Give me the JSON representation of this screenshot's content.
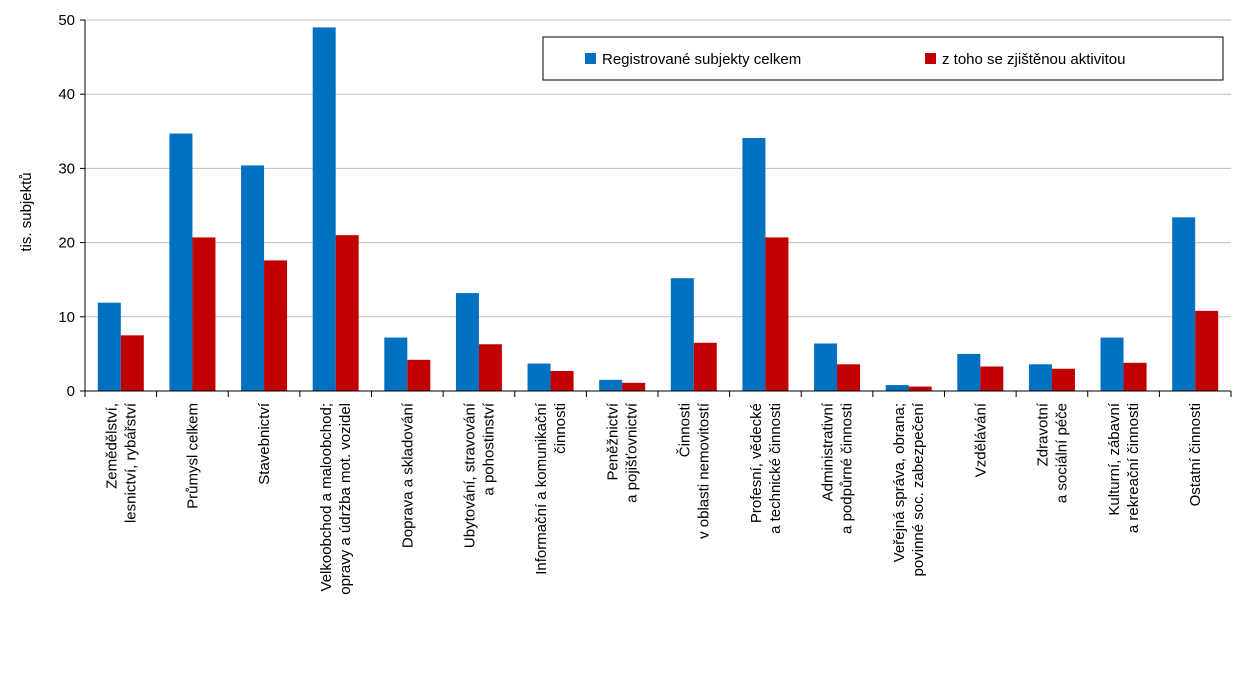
{
  "chart_data": {
    "type": "bar",
    "ylabel": "tis. subjektů",
    "ylim": [
      0,
      50
    ],
    "yticks": [
      0,
      10,
      20,
      30,
      40,
      50
    ],
    "grid": true,
    "legend_position": "top-right",
    "categories": [
      [
        "Zemědělství,",
        "lesnictví, rybářství"
      ],
      [
        "Průmysl celkem"
      ],
      [
        "Stavebnictví"
      ],
      [
        "Velkoobchod a maloobchod;",
        "opravy a údržba mot. vozidel"
      ],
      [
        "Doprava a skladování"
      ],
      [
        "Ubytování, stravování",
        "a pohostinství"
      ],
      [
        "Informační a komunikační",
        "činnosti"
      ],
      [
        "Peněžnictví",
        "a pojišťovnictví"
      ],
      [
        "Činnosti",
        "v oblasti nemovitostí"
      ],
      [
        "Profesní, vědecké",
        "a technické činnosti"
      ],
      [
        "Administrativní",
        "a podpůrné činnosti"
      ],
      [
        "Veřejná správa, obrana;",
        "povinné soc. zabezpečení"
      ],
      [
        "Vzdělávání"
      ],
      [
        "Zdravotní",
        "a sociální péče"
      ],
      [
        "Kulturní, zábavní",
        "a rekreační činnosti"
      ],
      [
        "Ostatní činnosti"
      ]
    ],
    "series": [
      {
        "name": "Registrované subjekty celkem",
        "color": "#0070c0",
        "values": [
          11.9,
          34.7,
          30.4,
          49.0,
          7.2,
          13.2,
          3.7,
          1.5,
          15.2,
          34.1,
          6.4,
          0.8,
          5.0,
          3.6,
          7.2,
          23.4
        ]
      },
      {
        "name": "z toho se zjištěnou aktivitou",
        "color": "#c00000",
        "values": [
          7.5,
          20.7,
          17.6,
          21.0,
          4.2,
          6.3,
          2.7,
          1.1,
          6.5,
          20.7,
          3.6,
          0.6,
          3.3,
          3.0,
          3.8,
          10.8
        ]
      }
    ]
  }
}
